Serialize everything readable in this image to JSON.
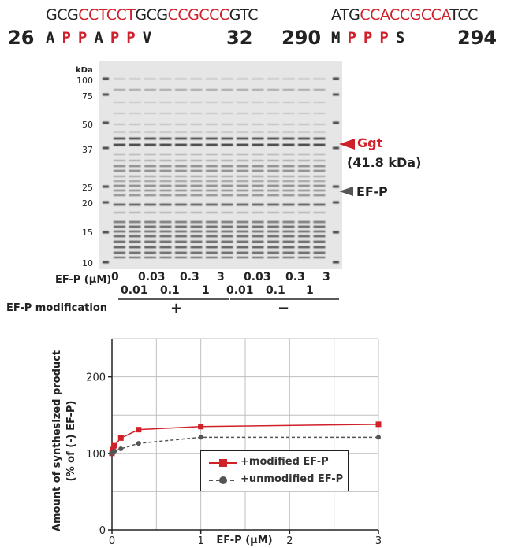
{
  "sequence_left": {
    "dna": [
      {
        "text": "GCG",
        "highlight": false
      },
      {
        "text": "CCTCCT",
        "highlight": true
      },
      {
        "text": "GCG",
        "highlight": false
      },
      {
        "text": "CCGCCC",
        "highlight": true
      },
      {
        "text": "GTC",
        "highlight": false
      }
    ],
    "start": "26",
    "end": "32",
    "residues": [
      {
        "aa": "A",
        "red": false
      },
      {
        "aa": "P",
        "red": true
      },
      {
        "aa": "P",
        "red": true
      },
      {
        "aa": "A",
        "red": false
      },
      {
        "aa": "P",
        "red": true
      },
      {
        "aa": "P",
        "red": true
      },
      {
        "aa": "V",
        "red": false
      }
    ]
  },
  "sequence_right": {
    "dna": [
      {
        "text": "ATG",
        "highlight": false
      },
      {
        "text": "CCACCGCCA",
        "highlight": true
      },
      {
        "text": "TCC",
        "highlight": false
      }
    ],
    "start": "290",
    "end": "294",
    "residues": [
      {
        "aa": "M",
        "red": false
      },
      {
        "aa": "P",
        "red": true
      },
      {
        "aa": "P",
        "red": true
      },
      {
        "aa": "P",
        "red": true
      },
      {
        "aa": "S",
        "red": false
      }
    ]
  },
  "gel": {
    "kda_header": "kDa",
    "markers": [
      "100",
      "75",
      "50",
      "37",
      "25",
      "20",
      "15",
      "10"
    ],
    "ggt_label": "Ggt",
    "ggt_mass": "(41.8 kDa)",
    "efp_label": "EF-P",
    "efp_axis_label": "EF-P (µM)",
    "conc_top": [
      "0",
      "0.03",
      "0.3",
      "3",
      "0.03",
      "0.3",
      "3"
    ],
    "conc_bottom": [
      "0.01",
      "0.1",
      "1",
      "0.01",
      "0.1",
      "1"
    ],
    "modification_label": "EF-P modification",
    "plus_sign": "+",
    "minus_sign": "−"
  },
  "chart_data": {
    "type": "line",
    "title": "",
    "xlabel": "EF-P (µM)",
    "ylabel": "Amount of synthesized product",
    "ylabel2": "(% of (-) EF-P)",
    "xlim": [
      0,
      3
    ],
    "ylim": [
      0,
      250
    ],
    "xticks": [
      "0",
      "1",
      "2",
      "3"
    ],
    "yticks": [
      "0",
      "100",
      "200"
    ],
    "grid": true,
    "legend_position": "lower-right",
    "series": [
      {
        "name": "+modified EF-P",
        "color": "#d0202a",
        "style": "solid",
        "marker": "square",
        "x": [
          0,
          0.01,
          0.03,
          0.1,
          0.3,
          1,
          3
        ],
        "y": [
          100,
          105,
          110,
          120,
          131,
          135,
          138
        ]
      },
      {
        "name": "+unmodified EF-P",
        "color": "#555555",
        "style": "dashed",
        "marker": "circle",
        "x": [
          0,
          0.01,
          0.03,
          0.1,
          0.3,
          1,
          3
        ],
        "y": [
          100,
          101,
          103,
          106,
          113,
          121,
          121
        ]
      }
    ]
  }
}
